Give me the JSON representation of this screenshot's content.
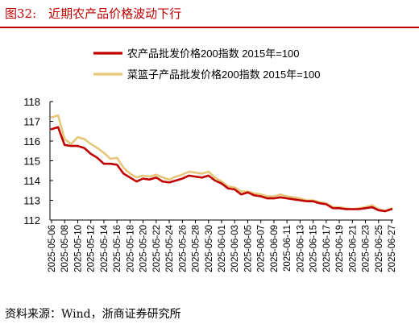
{
  "header": {
    "figure_title": "图32:　近期农产品价格波动下行"
  },
  "footer": {
    "source": "资料来源：Wind，浙商证券研究所"
  },
  "chart_data": {
    "type": "line",
    "title": "",
    "xlabel": "",
    "ylabel": "",
    "ylim": [
      112,
      118
    ],
    "y_ticks": [
      112,
      113,
      114,
      115,
      116,
      117,
      118
    ],
    "grid": false,
    "legend_position": "top",
    "x": [
      "2025-05-06",
      "2025-05-07",
      "2025-05-08",
      "2025-05-09",
      "2025-05-10",
      "2025-05-11",
      "2025-05-12",
      "2025-05-13",
      "2025-05-14",
      "2025-05-15",
      "2025-05-16",
      "2025-05-17",
      "2025-05-18",
      "2025-05-19",
      "2025-05-20",
      "2025-05-21",
      "2025-05-22",
      "2025-05-23",
      "2025-05-24",
      "2025-05-25",
      "2025-05-26",
      "2025-05-27",
      "2025-05-28",
      "2025-05-29",
      "2025-05-30",
      "2025-05-31",
      "2025-06-01",
      "2025-06-02",
      "2025-06-03",
      "2025-06-04",
      "2025-06-05",
      "2025-06-06",
      "2025-06-07",
      "2025-06-08",
      "2025-06-09",
      "2025-06-10",
      "2025-06-11",
      "2025-06-12",
      "2025-06-13",
      "2025-06-14",
      "2025-06-15",
      "2025-06-16",
      "2025-06-17",
      "2025-06-18",
      "2025-06-19",
      "2025-06-20",
      "2025-06-21",
      "2025-06-22",
      "2025-06-23",
      "2025-06-24",
      "2025-06-25",
      "2025-06-26",
      "2025-06-27"
    ],
    "x_tick_labels": [
      "2025-05-06",
      "2025-05-08",
      "2025-05-10",
      "2025-05-12",
      "2025-05-14",
      "2025-05-16",
      "2025-05-18",
      "2025-05-20",
      "2025-05-22",
      "2025-05-24",
      "2025-05-26",
      "2025-05-28",
      "2025-05-30",
      "2025-06-01",
      "2025-06-03",
      "2025-06-05",
      "2025-06-07",
      "2025-06-09",
      "2025-06-11",
      "2025-06-13",
      "2025-06-15",
      "2025-06-17",
      "2025-06-19",
      "2025-06-21",
      "2025-06-23",
      "2025-06-25",
      "2025-06-27"
    ],
    "series": [
      {
        "name": "农产品批发价格200指数 2015年=100",
        "color": "#c00000",
        "values": [
          116.6,
          116.7,
          115.8,
          115.75,
          115.75,
          115.65,
          115.35,
          115.15,
          114.85,
          114.85,
          114.8,
          114.35,
          114.15,
          113.95,
          114.1,
          114.05,
          114.15,
          113.95,
          113.9,
          114.0,
          114.1,
          114.25,
          114.2,
          114.15,
          114.25,
          114.0,
          113.85,
          113.6,
          113.55,
          113.3,
          113.4,
          113.25,
          113.2,
          113.1,
          113.1,
          113.15,
          113.1,
          113.05,
          113.0,
          112.95,
          112.95,
          112.85,
          112.8,
          112.6,
          112.6,
          112.55,
          112.55,
          112.55,
          112.6,
          112.65,
          112.5,
          112.45,
          112.55
        ]
      },
      {
        "name": "菜篮子产品批发价格200指数 2015年=100",
        "color": "#e6c77a",
        "values": [
          117.2,
          117.3,
          116.1,
          115.85,
          116.2,
          116.1,
          115.85,
          115.65,
          115.4,
          115.1,
          115.15,
          114.65,
          114.35,
          114.15,
          114.25,
          114.2,
          114.3,
          114.15,
          114.05,
          114.2,
          114.3,
          114.45,
          114.4,
          114.35,
          114.45,
          114.15,
          113.95,
          113.7,
          113.65,
          113.45,
          113.45,
          113.35,
          113.3,
          113.2,
          113.2,
          113.3,
          113.2,
          113.15,
          113.1,
          113.0,
          113.0,
          112.9,
          112.85,
          112.65,
          112.65,
          112.6,
          112.55,
          112.6,
          112.65,
          112.75,
          112.55,
          112.45,
          112.6
        ]
      }
    ]
  }
}
